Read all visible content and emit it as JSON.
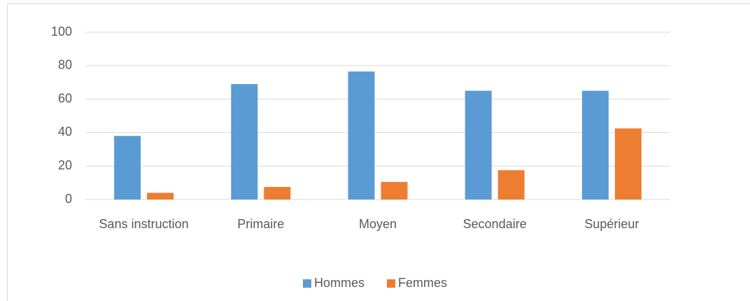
{
  "chart_data": {
    "type": "bar",
    "categories": [
      "Sans instruction",
      "Primaire",
      "Moyen",
      "Secondaire",
      "Supérieur"
    ],
    "series": [
      {
        "name": "Hommes",
        "color": "#5b9bd5",
        "values": [
          38,
          69,
          76.5,
          65,
          65
        ]
      },
      {
        "name": "Femmes",
        "color": "#ed7d31",
        "values": [
          4,
          7.5,
          10.5,
          17.5,
          42.5
        ]
      }
    ],
    "ylim": [
      0,
      100
    ],
    "yticks": [
      0,
      20,
      40,
      60,
      80,
      100
    ],
    "grid": true,
    "legend": "bottom"
  }
}
